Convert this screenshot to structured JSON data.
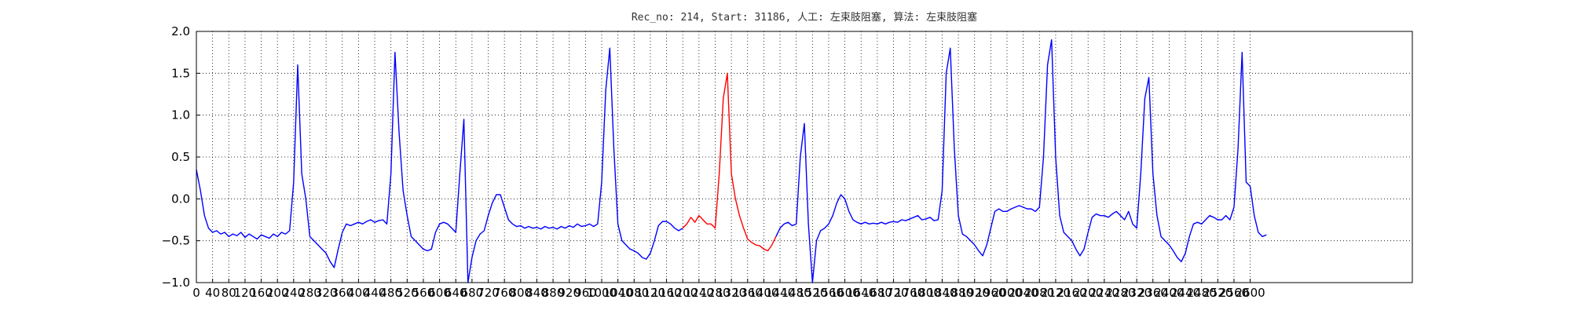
{
  "chart_data": {
    "type": "line",
    "title": "Rec_no: 214, Start: 31186, 人工: 左束肢阻塞, 算法: 左束肢阻塞",
    "grid": true,
    "xlim": [
      0,
      3000
    ],
    "xticks": [
      0,
      40,
      80,
      120,
      160,
      200,
      240,
      280,
      320,
      360,
      400,
      440,
      480,
      520,
      560,
      600,
      640,
      680,
      720,
      760,
      800,
      840,
      880,
      920,
      960,
      1000,
      1040,
      1080,
      1120,
      1160,
      1200,
      1240,
      1280,
      1320,
      1360,
      1400,
      1440,
      1480,
      1520,
      1560,
      1600,
      1640,
      1680,
      1720,
      1760,
      1800,
      1840,
      1880,
      1920,
      1960,
      2000,
      2040,
      2080,
      2120,
      2160,
      2200,
      2240,
      2280,
      2320,
      2360,
      2400,
      2440,
      2480,
      2520,
      2560,
      2600
    ],
    "ylim": [
      -1.0,
      2.0
    ],
    "yticks": [
      {
        "value": -1.0,
        "label": "−1.0"
      },
      {
        "value": -0.5,
        "label": "−0.5"
      },
      {
        "value": 0,
        "label": "0.0"
      },
      {
        "value": 0.5,
        "label": "0.5"
      },
      {
        "value": 1.0,
        "label": "1.0"
      },
      {
        "value": 1.5,
        "label": "1.5"
      },
      {
        "value": 2.0,
        "label": "2.0"
      }
    ],
    "series": [
      {
        "color": "#0000ff",
        "x": [
          0,
          10,
          20,
          30,
          40,
          50,
          60,
          70,
          80,
          90,
          100,
          110,
          120,
          130,
          140,
          150,
          160,
          170,
          180,
          190,
          200,
          210,
          220,
          230,
          240,
          250,
          260,
          270,
          280,
          290,
          300,
          310,
          320,
          330,
          340,
          350,
          360,
          370,
          380,
          390,
          400,
          410,
          420,
          430,
          440,
          450,
          460,
          470,
          480,
          490,
          500,
          510,
          520,
          530,
          540,
          550,
          560,
          570,
          580,
          590,
          600,
          610,
          620,
          630,
          640,
          650,
          660,
          670,
          680,
          690,
          700,
          710,
          720,
          730,
          740,
          750,
          760,
          770,
          780,
          790,
          800,
          810,
          820,
          830,
          840,
          850,
          860,
          870,
          880,
          890,
          900,
          910,
          920,
          930,
          940,
          950,
          960,
          970,
          980,
          990,
          1000,
          1010,
          1020,
          1030,
          1040,
          1050,
          1060,
          1070,
          1080,
          1090,
          1100,
          1110,
          1120,
          1130,
          1140,
          1150,
          1160,
          1170,
          1180,
          1190,
          1200,
          1210,
          1220,
          1230,
          1240,
          1250,
          1260,
          1270,
          1280,
          1290,
          1300,
          1310,
          1320,
          1330,
          1340,
          1350,
          1360,
          1370,
          1380,
          1390,
          1400,
          1410,
          1420,
          1430,
          1440,
          1450,
          1460,
          1470,
          1480,
          1490,
          1500,
          1510,
          1520,
          1530,
          1540,
          1550,
          1560,
          1570,
          1580,
          1590,
          1600,
          1610,
          1620,
          1630,
          1640,
          1650,
          1660,
          1670,
          1680,
          1690,
          1700,
          1710,
          1720,
          1730,
          1740,
          1750,
          1760,
          1770,
          1780,
          1790,
          1800,
          1810,
          1820,
          1830,
          1840,
          1850,
          1860,
          1870,
          1880,
          1890,
          1900,
          1910,
          1920,
          1930,
          1940,
          1950,
          1960,
          1970,
          1980,
          1990,
          2000,
          2010,
          2020,
          2030,
          2040,
          2050,
          2060,
          2070,
          2080,
          2090,
          2100,
          2110,
          2120,
          2130,
          2140,
          2150,
          2160,
          2170,
          2180,
          2190,
          2200,
          2210,
          2220,
          2230,
          2240,
          2250,
          2260,
          2270,
          2280,
          2290,
          2300,
          2310,
          2320,
          2330,
          2340,
          2350,
          2360,
          2370,
          2380,
          2390,
          2400,
          2410,
          2420,
          2430,
          2440,
          2450,
          2460,
          2470,
          2480,
          2490,
          2500,
          2510,
          2520,
          2530,
          2540,
          2550,
          2560,
          2570,
          2580,
          2590,
          2600,
          2610,
          2620,
          2630,
          2640
        ],
        "values": [
          0.35,
          0.1,
          -0.2,
          -0.35,
          -0.4,
          -0.38,
          -0.42,
          -0.4,
          -0.45,
          -0.42,
          -0.44,
          -0.4,
          -0.46,
          -0.42,
          -0.45,
          -0.48,
          -0.43,
          -0.45,
          -0.47,
          -0.42,
          -0.45,
          -0.4,
          -0.42,
          -0.38,
          0.2,
          1.6,
          0.3,
          0.0,
          -0.45,
          -0.5,
          -0.55,
          -0.6,
          -0.65,
          -0.75,
          -0.82,
          -0.6,
          -0.4,
          -0.3,
          -0.32,
          -0.3,
          -0.28,
          -0.3,
          -0.27,
          -0.25,
          -0.28,
          -0.26,
          -0.25,
          -0.3,
          0.3,
          1.75,
          0.8,
          0.1,
          -0.2,
          -0.45,
          -0.5,
          -0.55,
          -0.6,
          -0.62,
          -0.6,
          -0.4,
          -0.3,
          -0.28,
          -0.3,
          -0.35,
          -0.4,
          0.3,
          0.95,
          -1.0,
          -0.7,
          -0.5,
          -0.42,
          -0.38,
          -0.2,
          -0.05,
          0.05,
          0.05,
          -0.1,
          -0.25,
          -0.3,
          -0.33,
          -0.32,
          -0.35,
          -0.33,
          -0.35,
          -0.34,
          -0.36,
          -0.33,
          -0.35,
          -0.34,
          -0.36,
          -0.33,
          -0.35,
          -0.32,
          -0.34,
          -0.3,
          -0.33,
          -0.32,
          -0.3,
          -0.33,
          -0.3,
          0.2,
          1.3,
          1.8,
          0.6,
          -0.3,
          -0.5,
          -0.55,
          -0.6,
          -0.62,
          -0.65,
          -0.7,
          -0.72,
          -0.65,
          -0.5,
          -0.32,
          -0.27,
          -0.27,
          -0.3,
          -0.35,
          -0.38,
          -0.35,
          null,
          null,
          null,
          null,
          null,
          null,
          null,
          null,
          null,
          null,
          null,
          null,
          null,
          null,
          null,
          null,
          null,
          null,
          null,
          null,
          null,
          null,
          -0.45,
          -0.35,
          -0.3,
          -0.28,
          -0.32,
          -0.3,
          0.5,
          0.9,
          -0.3,
          -1.0,
          -0.5,
          -0.38,
          -0.35,
          -0.3,
          -0.2,
          -0.05,
          0.05,
          0.0,
          -0.15,
          -0.25,
          -0.28,
          -0.3,
          -0.28,
          -0.3,
          -0.29,
          -0.3,
          -0.28,
          -0.3,
          -0.28,
          -0.27,
          -0.28,
          -0.25,
          -0.26,
          -0.24,
          -0.22,
          -0.2,
          -0.25,
          -0.24,
          -0.22,
          -0.26,
          -0.25,
          0.1,
          1.5,
          1.8,
          0.6,
          -0.2,
          -0.42,
          -0.45,
          -0.5,
          -0.55,
          -0.62,
          -0.68,
          -0.55,
          -0.35,
          -0.15,
          -0.12,
          -0.15,
          -0.15,
          -0.12,
          -0.1,
          -0.08,
          -0.1,
          -0.12,
          -0.12,
          -0.15,
          -0.1,
          0.5,
          1.6,
          1.9,
          0.5,
          -0.2,
          -0.4,
          -0.45,
          -0.5,
          -0.6,
          -0.68,
          -0.6,
          -0.4,
          -0.22,
          -0.18,
          -0.2,
          -0.2,
          -0.22,
          -0.18,
          -0.15,
          -0.2,
          -0.25,
          -0.15,
          -0.3,
          -0.35,
          0.3,
          1.2,
          1.45,
          0.3,
          -0.2,
          -0.45,
          -0.5,
          -0.55,
          -0.62,
          -0.7,
          -0.75,
          -0.65,
          -0.45,
          -0.3,
          -0.28,
          -0.3,
          -0.25,
          -0.2,
          -0.22,
          -0.25,
          -0.25,
          -0.2,
          -0.25,
          -0.1,
          0.6,
          1.75,
          0.2,
          0.15,
          -0.2,
          -0.4,
          -0.45,
          -0.43
        ]
      },
      {
        "color": "#ff0000",
        "x": [
          1200,
          1210,
          1220,
          1230,
          1240,
          1250,
          1260,
          1270,
          1280,
          1290,
          1300,
          1310,
          1320,
          1330,
          1340,
          1350,
          1360,
          1370,
          1380,
          1390,
          1400,
          1410,
          1420,
          1430
        ],
        "values": [
          -0.35,
          -0.3,
          -0.22,
          -0.28,
          -0.2,
          -0.25,
          -0.3,
          -0.3,
          -0.35,
          0.3,
          1.2,
          1.5,
          0.3,
          0.0,
          -0.2,
          -0.35,
          -0.48,
          -0.52,
          -0.55,
          -0.56,
          -0.6,
          -0.62,
          -0.55,
          -0.45
        ]
      }
    ]
  }
}
